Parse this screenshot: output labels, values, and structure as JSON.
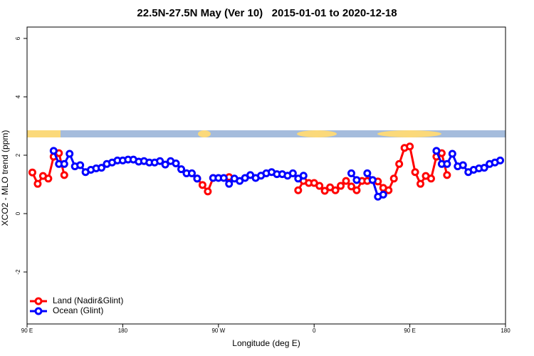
{
  "chart_data": {
    "type": "line",
    "title": "22.5N-27.5N May (Ver 10)   2015-01-01 to 2020-12-18",
    "x_label": "Longitude (deg E)",
    "y_label": "XCO2 - MLO trend (ppm)",
    "xlim": [
      90,
      540
    ],
    "ylim": [
      -3.78,
      6.39
    ],
    "xticks": [
      {
        "value": 90,
        "label": "90 E"
      },
      180,
      {
        "value": 270,
        "label": "90 W"
      },
      {
        "value": 360,
        "label": "0"
      },
      {
        "value": 450,
        "label": "90 E"
      },
      {
        "value": 540,
        "label": "180"
      }
    ],
    "yticks": [
      -2,
      0,
      2,
      4,
      6
    ],
    "legend": "bottom-left",
    "series": [
      {
        "name": "Land (Nadir&Glint)",
        "color": "#ff0000",
        "x": [
          95,
          100,
          105,
          110,
          115,
          120,
          125,
          130,
          250,
          255,
          260,
          265,
          270,
          280,
          285,
          345,
          350,
          355,
          360,
          365,
          370,
          375,
          380,
          385,
          390,
          395,
          400,
          405,
          410,
          415,
          420,
          425,
          430,
          435,
          440,
          445,
          450,
          455,
          460,
          465,
          470,
          475,
          480,
          485
        ],
        "values": [
          1.41,
          1.02,
          1.29,
          1.2,
          1.95,
          2.07,
          1.32,
          null,
          1.2,
          0.98,
          0.76,
          1.22,
          null,
          1.25,
          null,
          0.8,
          1.12,
          1.05,
          1.05,
          0.95,
          0.78,
          0.9,
          0.8,
          0.95,
          1.12,
          0.93,
          0.8,
          1.12,
          1.12,
          1.15,
          1.1,
          0.88,
          0.8,
          1.2,
          1.7,
          2.25,
          2.3,
          1.42,
          1.02,
          1.29,
          1.2,
          1.95,
          2.07,
          1.32
        ]
      },
      {
        "name": "Ocean (Glint)",
        "color": "#0000ff",
        "x": [
          115,
          120,
          125,
          130,
          135,
          140,
          145,
          150,
          155,
          160,
          165,
          170,
          175,
          180,
          185,
          190,
          195,
          200,
          205,
          210,
          215,
          220,
          225,
          230,
          235,
          240,
          245,
          250,
          255,
          265,
          270,
          275,
          280,
          285,
          290,
          295,
          300,
          305,
          310,
          315,
          320,
          325,
          330,
          335,
          340,
          345,
          350,
          355,
          395,
          400,
          405,
          410,
          415,
          420,
          425,
          430,
          475,
          480,
          485,
          490,
          495,
          500,
          505,
          510,
          515,
          520,
          525,
          530,
          535
        ],
        "values": [
          2.15,
          1.7,
          1.7,
          2.05,
          1.62,
          1.66,
          1.42,
          1.5,
          1.55,
          1.57,
          1.7,
          1.75,
          1.82,
          1.82,
          1.85,
          1.85,
          1.78,
          1.8,
          1.75,
          1.75,
          1.8,
          1.68,
          1.8,
          1.72,
          1.52,
          1.38,
          1.38,
          1.2,
          null,
          1.22,
          1.22,
          1.22,
          1.02,
          1.2,
          1.12,
          1.22,
          1.32,
          1.22,
          1.3,
          1.38,
          1.42,
          1.35,
          1.35,
          1.3,
          1.38,
          1.2,
          1.3,
          null,
          1.38,
          1.15,
          null,
          1.38,
          1.15,
          0.58,
          0.65,
          null,
          2.15,
          1.7,
          1.7,
          2.05,
          1.62,
          1.66,
          1.42,
          1.5,
          1.55,
          1.57,
          1.7,
          1.75,
          1.82
        ]
      }
    ]
  }
}
